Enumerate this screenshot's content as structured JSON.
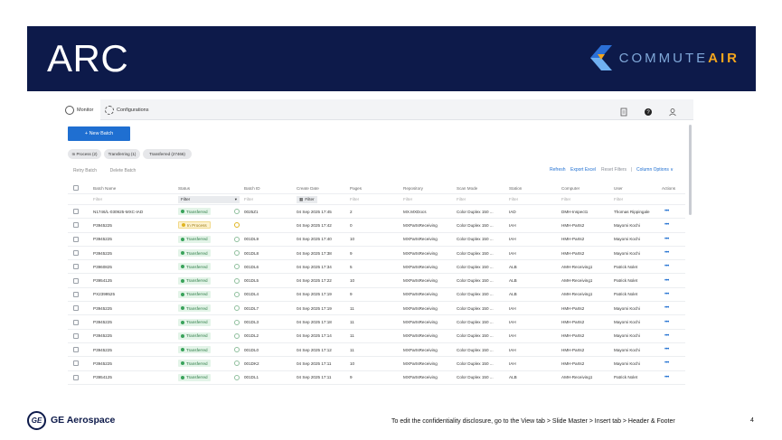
{
  "slide": {
    "title": "ARC",
    "page_number": "4"
  },
  "brand": {
    "prefix": "COMMUTE",
    "suffix": "AIR"
  },
  "footer": {
    "company": "GE Aerospace",
    "logo_text": "GE",
    "disclosure": "To edit the confidentiality disclosure, go to the View tab > Slide Master > Insert tab > Header & Footer"
  },
  "nav": {
    "monitor": "Monitor",
    "configurations": "Configurations"
  },
  "actions": {
    "new_batch": "+  New Batch",
    "retry_batch": "Retry Batch",
    "delete_batch": "Delete Batch"
  },
  "chips": [
    {
      "label": "In Process (2)"
    },
    {
      "label": "Transferring (1)"
    },
    {
      "label": "Transferred (27466)"
    }
  ],
  "toolbar": {
    "refresh": "Refresh",
    "export": "Export Excel",
    "reset": "Reset Filters",
    "separator": "|",
    "columns": "Column Options ∨"
  },
  "columns": [
    "Batch Name",
    "Status",
    "Batch ID",
    "Create Date",
    "Pages",
    "Repository",
    "Scan Mode",
    "Station",
    "Computer",
    "User",
    "Actions"
  ],
  "filters": {
    "placeholder": "Filter",
    "status_filter": "Filter",
    "date_filter": "Filter"
  },
  "rows": [
    {
      "name": "N1746/L-030925-MXC-IAD",
      "status": "Transferred",
      "status_type": "ok",
      "batch_id": "0025Z1",
      "date": "04 Sep 2025 17:45",
      "pages": "2",
      "repo": "MX.MXDocs",
      "scan_mode": "Color Duplex 150 ...",
      "station": "IAD",
      "computer": "DMH-Inspect1",
      "user": "Thomas Rippingale",
      "actions": "•••"
    },
    {
      "name": "P3945225",
      "status": "In Process",
      "status_type": "proc",
      "batch_id": "",
      "date": "04 Sep 2025 17:42",
      "pages": "0",
      "repo": "MXPartsReceiving",
      "scan_mode": "Color Duplex 150 ...",
      "station": "IAH",
      "computer": "HMH-Parts2",
      "user": "Mayomi Kochi",
      "actions": "•••"
    },
    {
      "name": "P3945225",
      "status": "Transferred",
      "status_type": "ok",
      "batch_id": "001DL9",
      "date": "04 Sep 2025 17:40",
      "pages": "10",
      "repo": "MXPartsReceiving",
      "scan_mode": "Color Duplex 150 ...",
      "station": "IAH",
      "computer": "HMH-Parts2",
      "user": "Mayomi Kochi",
      "actions": "•••"
    },
    {
      "name": "P3945225",
      "status": "Transferred",
      "status_type": "ok",
      "batch_id": "001DL8",
      "date": "04 Sep 2025 17:38",
      "pages": "9",
      "repo": "MXPartsReceiving",
      "scan_mode": "Color Duplex 150 ...",
      "station": "IAH",
      "computer": "HMH-Parts2",
      "user": "Mayomi Kochi",
      "actions": "•••"
    },
    {
      "name": "P3960825",
      "status": "Transferred",
      "status_type": "ok",
      "batch_id": "001DL6",
      "date": "04 Sep 2025 17:34",
      "pages": "5",
      "repo": "MXPartsReceiving",
      "scan_mode": "Color Duplex 150 ...",
      "station": "ALB",
      "computer": "AMH-Receiving1",
      "user": "Patrick Nolet",
      "actions": "•••"
    },
    {
      "name": "P3954125",
      "status": "Transferred",
      "status_type": "ok",
      "batch_id": "001DL5",
      "date": "04 Sep 2025 17:22",
      "pages": "10",
      "repo": "MXPartsReceiving",
      "scan_mode": "Color Duplex 150 ...",
      "station": "ALB",
      "computer": "AMH-Receiving1",
      "user": "Patrick Nolet",
      "actions": "•••"
    },
    {
      "name": "PX2399525",
      "status": "Transferred",
      "status_type": "ok",
      "batch_id": "001DL4",
      "date": "04 Sep 2025 17:19",
      "pages": "9",
      "repo": "MXPartsReceiving",
      "scan_mode": "Color Duplex 150 ...",
      "station": "ALB",
      "computer": "AMH-Receiving1",
      "user": "Patrick Nolet",
      "actions": "•••"
    },
    {
      "name": "P3945225",
      "status": "Transferred",
      "status_type": "ok",
      "batch_id": "001DL7",
      "date": "04 Sep 2025 17:19",
      "pages": "11",
      "repo": "MXPartsReceiving",
      "scan_mode": "Color Duplex 150 ...",
      "station": "IAH",
      "computer": "HMH-Parts2",
      "user": "Mayomi Kochi",
      "actions": "•••"
    },
    {
      "name": "P3945225",
      "status": "Transferred",
      "status_type": "ok",
      "batch_id": "001DL3",
      "date": "04 Sep 2025 17:18",
      "pages": "11",
      "repo": "MXPartsReceiving",
      "scan_mode": "Color Duplex 150 ...",
      "station": "IAH",
      "computer": "HMH-Parts2",
      "user": "Mayomi Kochi",
      "actions": "•••"
    },
    {
      "name": "P3945225",
      "status": "Transferred",
      "status_type": "ok",
      "batch_id": "001DL2",
      "date": "04 Sep 2025 17:14",
      "pages": "11",
      "repo": "MXPartsReceiving",
      "scan_mode": "Color Duplex 150 ...",
      "station": "IAH",
      "computer": "HMH-Parts2",
      "user": "Mayomi Kochi",
      "actions": "•••"
    },
    {
      "name": "P3945225",
      "status": "Transferred",
      "status_type": "ok",
      "batch_id": "001DL0",
      "date": "04 Sep 2025 17:12",
      "pages": "11",
      "repo": "MXPartsReceiving",
      "scan_mode": "Color Duplex 150 ...",
      "station": "IAH",
      "computer": "HMH-Parts2",
      "user": "Mayomi Kochi",
      "actions": "•••"
    },
    {
      "name": "P3945225",
      "status": "Transferred",
      "status_type": "ok",
      "batch_id": "001DK2",
      "date": "04 Sep 2025 17:11",
      "pages": "10",
      "repo": "MXPartsReceiving",
      "scan_mode": "Color Duplex 150 ...",
      "station": "IAH",
      "computer": "HMH-Parts2",
      "user": "Mayomi Kochi",
      "actions": "•••"
    },
    {
      "name": "P3954125",
      "status": "Transferred",
      "status_type": "ok",
      "batch_id": "001DL1",
      "date": "04 Sep 2025 17:11",
      "pages": "9",
      "repo": "MXPartsReceiving",
      "scan_mode": "Color Duplex 150 ...",
      "station": "ALB",
      "computer": "AMH-Receiving1",
      "user": "Patrick Nolet",
      "actions": "•••"
    }
  ],
  "colors": {
    "header_navy": "#0d1a4a",
    "accent_blue": "#1f6fd1",
    "success_green": "#3aa35b",
    "warning_yellow": "#e0b521",
    "brand_orange": "#f3a51d"
  },
  "icons": [
    "monitor-icon",
    "gear-icon",
    "clipboard-icon",
    "help-icon",
    "user-icon",
    "calendar-icon",
    "dropdown-icon"
  ]
}
